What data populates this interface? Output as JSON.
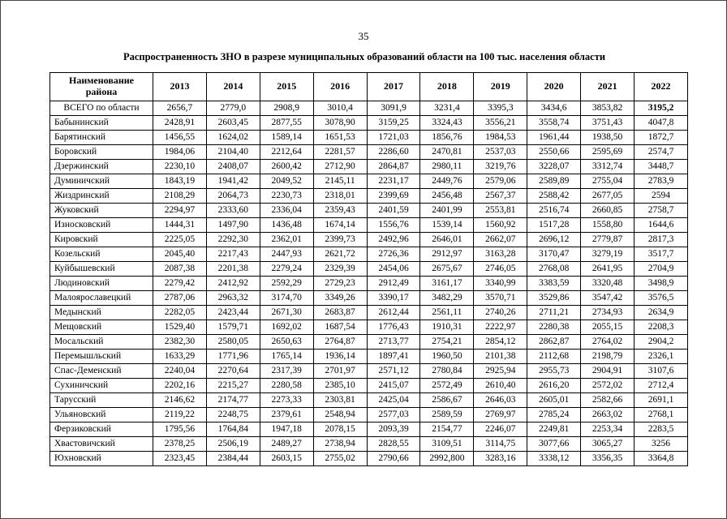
{
  "page": {
    "number": "35",
    "title": "Распространенность ЗНО в разрезе муниципальных образований области на 100 тыс. населения области"
  },
  "table": {
    "name_header": "Наименование района",
    "years": [
      "2013",
      "2014",
      "2015",
      "2016",
      "2017",
      "2018",
      "2019",
      "2020",
      "2021",
      "2022"
    ],
    "total": {
      "label": "ВСЕГО по области",
      "values": [
        "2656,7",
        "2779,0",
        "2908,9",
        "3010,4",
        "3091,9",
        "3231,4",
        "3395,3",
        "3434,6",
        "3853,82",
        "3195,2"
      ]
    },
    "districts": [
      {
        "label": "Бабынинский",
        "values": [
          "2428,91",
          "2603,45",
          "2877,55",
          "3078,90",
          "3159,25",
          "3324,43",
          "3556,21",
          "3558,74",
          "3751,43",
          "4047,8"
        ]
      },
      {
        "label": "Барятинский",
        "values": [
          "1456,55",
          "1624,02",
          "1589,14",
          "1651,53",
          "1721,03",
          "1856,76",
          "1984,53",
          "1961,44",
          "1938,50",
          "1872,7"
        ]
      },
      {
        "label": "Боровский",
        "values": [
          "1984,06",
          "2104,40",
          "2212,64",
          "2281,57",
          "2286,60",
          "2470,81",
          "2537,03",
          "2550,66",
          "2595,69",
          "2574,7"
        ]
      },
      {
        "label": "Дзержинский",
        "values": [
          "2230,10",
          "2408,07",
          "2600,42",
          "2712,90",
          "2864,87",
          "2980,11",
          "3219,76",
          "3228,07",
          "3312,74",
          "3448,7"
        ]
      },
      {
        "label": "Думиничский",
        "values": [
          "1843,19",
          "1941,42",
          "2049,52",
          "2145,11",
          "2231,17",
          "2449,76",
          "2579,06",
          "2589,89",
          "2755,04",
          "2783,9"
        ]
      },
      {
        "label": "Жиздринский",
        "values": [
          "2108,29",
          "2064,73",
          "2230,73",
          "2318,01",
          "2399,69",
          "2456,48",
          "2567,37",
          "2588,42",
          "2677,05",
          "2594"
        ]
      },
      {
        "label": "Жуковский",
        "values": [
          "2294,97",
          "2333,60",
          "2336,04",
          "2359,43",
          "2401,59",
          "2401,99",
          "2553,81",
          "2516,74",
          "2660,85",
          "2758,7"
        ]
      },
      {
        "label": "Износковский",
        "values": [
          "1444,31",
          "1497,90",
          "1436,48",
          "1674,14",
          "1556,76",
          "1539,14",
          "1560,92",
          "1517,28",
          "1558,80",
          "1644,6"
        ]
      },
      {
        "label": "Кировский",
        "values": [
          "2225,05",
          "2292,30",
          "2362,01",
          "2399,73",
          "2492,96",
          "2646,01",
          "2662,07",
          "2696,12",
          "2779,87",
          "2817,3"
        ]
      },
      {
        "label": "Козельский",
        "values": [
          "2045,40",
          "2217,43",
          "2447,93",
          "2621,72",
          "2726,36",
          "2912,97",
          "3163,28",
          "3170,47",
          "3279,19",
          "3517,7"
        ]
      },
      {
        "label": "Куйбышевский",
        "values": [
          "2087,38",
          "2201,38",
          "2279,24",
          "2329,39",
          "2454,06",
          "2675,67",
          "2746,05",
          "2768,08",
          "2641,95",
          "2704,9"
        ]
      },
      {
        "label": "Людиновский",
        "values": [
          "2279,42",
          "2412,92",
          "2592,29",
          "2729,23",
          "2912,49",
          "3161,17",
          "3340,99",
          "3383,59",
          "3320,48",
          "3498,9"
        ]
      },
      {
        "label": "Малоярославецкий",
        "values": [
          "2787,06",
          "2963,32",
          "3174,70",
          "3349,26",
          "3390,17",
          "3482,29",
          "3570,71",
          "3529,86",
          "3547,42",
          "3576,5"
        ]
      },
      {
        "label": "Медынский",
        "values": [
          "2282,05",
          "2423,44",
          "2671,30",
          "2683,87",
          "2612,44",
          "2561,11",
          "2740,26",
          "2711,21",
          "2734,93",
          "2634,9"
        ]
      },
      {
        "label": "Мещовский",
        "values": [
          "1529,40",
          "1579,71",
          "1692,02",
          "1687,54",
          "1776,43",
          "1910,31",
          "2222,97",
          "2280,38",
          "2055,15",
          "2208,3"
        ]
      },
      {
        "label": "Мосальский",
        "values": [
          "2382,30",
          "2580,05",
          "2650,63",
          "2764,87",
          "2713,77",
          "2754,21",
          "2854,12",
          "2862,87",
          "2764,02",
          "2904,2"
        ]
      },
      {
        "label": "Перемышльский",
        "values": [
          "1633,29",
          "1771,96",
          "1765,14",
          "1936,14",
          "1897,41",
          "1960,50",
          "2101,38",
          "2112,68",
          "2198,79",
          "2326,1"
        ]
      },
      {
        "label": "Спас-Деменский",
        "values": [
          "2240,04",
          "2270,64",
          "2317,39",
          "2701,97",
          "2571,12",
          "2780,84",
          "2925,94",
          "2955,73",
          "2904,91",
          "3107,6"
        ]
      },
      {
        "label": "Сухиничский",
        "values": [
          "2202,16",
          "2215,27",
          "2280,58",
          "2385,10",
          "2415,07",
          "2572,49",
          "2610,40",
          "2616,20",
          "2572,02",
          "2712,4"
        ]
      },
      {
        "label": "Тарусский",
        "values": [
          "2146,62",
          "2174,77",
          "2273,33",
          "2303,81",
          "2425,04",
          "2586,67",
          "2646,03",
          "2605,01",
          "2582,66",
          "2691,1"
        ]
      },
      {
        "label": "Ульяновский",
        "values": [
          "2119,22",
          "2248,75",
          "2379,61",
          "2548,94",
          "2577,03",
          "2589,59",
          "2769,97",
          "2785,24",
          "2663,02",
          "2768,1"
        ]
      },
      {
        "label": "Ферзиковский",
        "values": [
          "1795,56",
          "1764,84",
          "1947,18",
          "2078,15",
          "2093,39",
          "2154,77",
          "2246,07",
          "2249,81",
          "2253,34",
          "2283,5"
        ]
      },
      {
        "label": "Хвастовичский",
        "values": [
          "2378,25",
          "2506,19",
          "2489,27",
          "2738,94",
          "2828,55",
          "3109,51",
          "3114,75",
          "3077,66",
          "3065,27",
          "3256"
        ]
      },
      {
        "label": "Юхновский",
        "values": [
          "2323,45",
          "2384,44",
          "2603,15",
          "2755,02",
          "2790,66",
          "2992,800",
          "3283,16",
          "3338,12",
          "3356,35",
          "3364,8"
        ]
      }
    ]
  }
}
